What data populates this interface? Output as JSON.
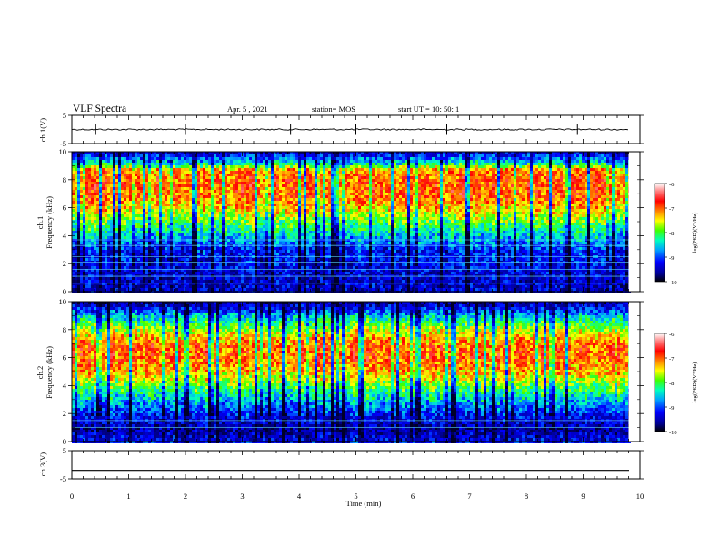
{
  "header": {
    "title": "VLF Spectra",
    "date": "Apr. 5 , 2021",
    "station": "station= MOS",
    "start": "start UT =   10: 50: 1"
  },
  "chart_data": [
    {
      "type": "line",
      "panel": "ch1-waveform",
      "ylabel": "ch.1(V)",
      "ylim": [
        -5,
        5
      ],
      "yticks": [
        "5",
        "-5"
      ],
      "x": [
        0,
        10
      ],
      "y": [
        0,
        0
      ]
    },
    {
      "type": "heatmap",
      "panel": "ch1-spectrogram",
      "ylabel": "ch.1\nFrequency (kHz)",
      "xlim": [
        0,
        10
      ],
      "ylim": [
        0,
        10
      ],
      "yticks": [
        "0",
        "2",
        "4",
        "6",
        "8",
        "10"
      ],
      "colorbar": {
        "label": "log(PSD)(V²/Hz)",
        "ticks": [
          "-6",
          "-7",
          "-8",
          "-9",
          "-10"
        ],
        "range": [
          -10,
          -6
        ]
      },
      "band_profile_khz": [
        [
          0,
          -9.4
        ],
        [
          1,
          -9.4
        ],
        [
          2,
          -9.3
        ],
        [
          3,
          -9.2
        ],
        [
          4,
          -8.6
        ],
        [
          5,
          -8.0
        ],
        [
          6,
          -7.4
        ],
        [
          7,
          -7.0
        ],
        [
          8,
          -7.0
        ],
        [
          8.8,
          -7.2
        ],
        [
          9.2,
          -8.3
        ],
        [
          10,
          -9.4
        ]
      ]
    },
    {
      "type": "heatmap",
      "panel": "ch2-spectrogram",
      "ylabel": "ch.2\nFrequency (kHz)",
      "xlim": [
        0,
        10
      ],
      "ylim": [
        0,
        10
      ],
      "yticks": [
        "0",
        "2",
        "4",
        "6",
        "8",
        "10"
      ],
      "colorbar": {
        "label": "log(PSD)(V²/Hz)",
        "ticks": [
          "-6",
          "-7",
          "-8",
          "-9",
          "-10"
        ],
        "range": [
          -10,
          -6
        ]
      },
      "band_profile_khz": [
        [
          0,
          -9.2
        ],
        [
          1,
          -9.6
        ],
        [
          2,
          -9.2
        ],
        [
          3,
          -8.6
        ],
        [
          4,
          -8.0
        ],
        [
          5,
          -7.3
        ],
        [
          6,
          -7.0
        ],
        [
          7,
          -7.0
        ],
        [
          8,
          -7.6
        ],
        [
          9,
          -8.5
        ],
        [
          10,
          -9.6
        ]
      ]
    },
    {
      "type": "line",
      "panel": "ch3-waveform",
      "ylabel": "ch.3(V)",
      "ylim": [
        -5,
        5
      ],
      "yticks": [
        "5",
        "-5"
      ],
      "x": [
        0,
        10
      ],
      "y": [
        -2,
        -2
      ]
    }
  ],
  "xaxis": {
    "label": "Time  (min)",
    "ticks": [
      "0",
      "1",
      "2",
      "3",
      "4",
      "5",
      "6",
      "7",
      "8",
      "9",
      "10"
    ]
  },
  "colormap": [
    "#000080",
    "#0000ff",
    "#0080ff",
    "#00e0ff",
    "#00ff90",
    "#40ff00",
    "#d0ff00",
    "#ffff00",
    "#ffa000",
    "#ff4000",
    "#ff0000",
    "#ff5050",
    "#ffffff"
  ]
}
